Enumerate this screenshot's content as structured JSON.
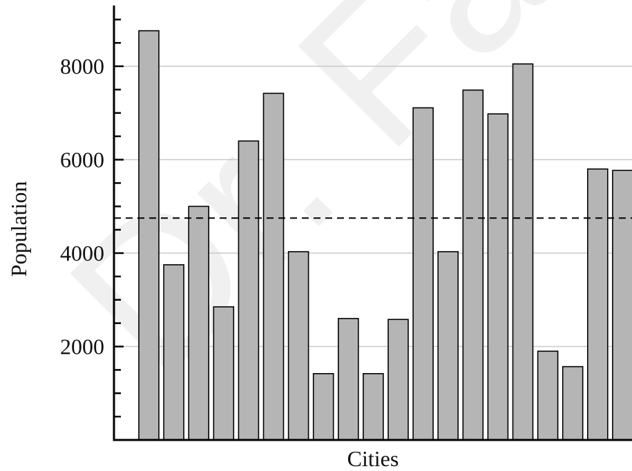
{
  "watermark": "Dr. Fal",
  "colors": {
    "bar_fill": "#b5b5b5",
    "bar_stroke": "#000000",
    "grid": "#c8c8c8",
    "axis": "#000000",
    "mean_line": "#000000"
  },
  "chart_data": {
    "type": "bar",
    "title": "",
    "xlabel": "Cities",
    "ylabel": "Population",
    "ylim": [
      0,
      9300
    ],
    "yticks": [
      2000,
      4000,
      6000,
      8000
    ],
    "grid": true,
    "reference_line": {
      "style": "dashed",
      "value": 4750
    },
    "values": [
      8760,
      3750,
      5000,
      2850,
      6400,
      7420,
      4030,
      1420,
      2600,
      1420,
      2580,
      7110,
      4030,
      7490,
      6980,
      8050,
      1900,
      1570,
      5800,
      5770
    ]
  }
}
